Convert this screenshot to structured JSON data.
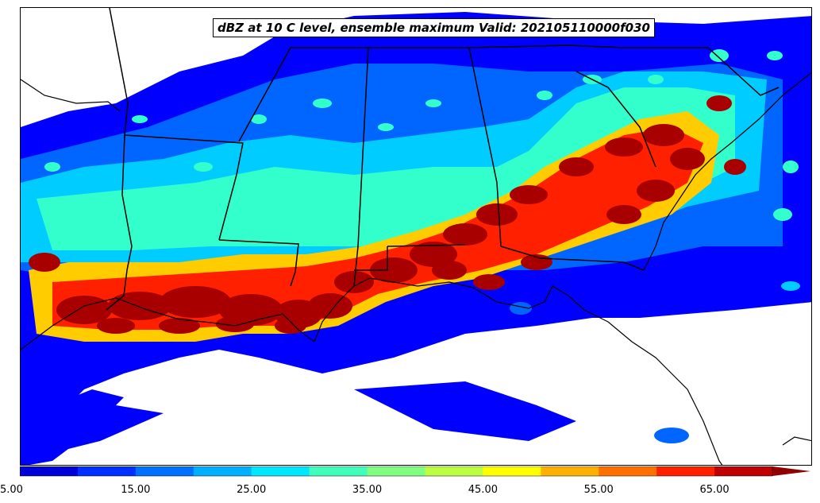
{
  "title": "dBZ at 10 C level, ensemble maximum Valid: 202105110000f030",
  "colorbar": {
    "ticks": [
      "5.00",
      "15.00",
      "25.00",
      "35.00",
      "45.00",
      "55.00",
      "65.00"
    ],
    "tick_values": [
      5,
      15,
      25,
      35,
      45,
      55,
      65
    ],
    "range": [
      5,
      70
    ],
    "interval": 5,
    "extend": "max",
    "colors": [
      "#000090",
      "#0000d8",
      "#0030ff",
      "#0070ff",
      "#00b0ff",
      "#00e8ff",
      "#40ffbc",
      "#80ff80",
      "#bcff40",
      "#ffff00",
      "#ffb000",
      "#ff7000",
      "#ff2000",
      "#c00000",
      "#900000"
    ]
  },
  "field_colors": {
    "low": "#0000ff",
    "mid": "#0066ff",
    "light": "#00ccff",
    "cyan": "#33ffcc",
    "high": "#ffcc00",
    "red": "#ff2000",
    "core": "#a80000"
  },
  "map": {
    "region": "Southeastern United States",
    "projection": "Lambert conformal",
    "boundaries": [
      "coastlines",
      "state borders"
    ]
  }
}
